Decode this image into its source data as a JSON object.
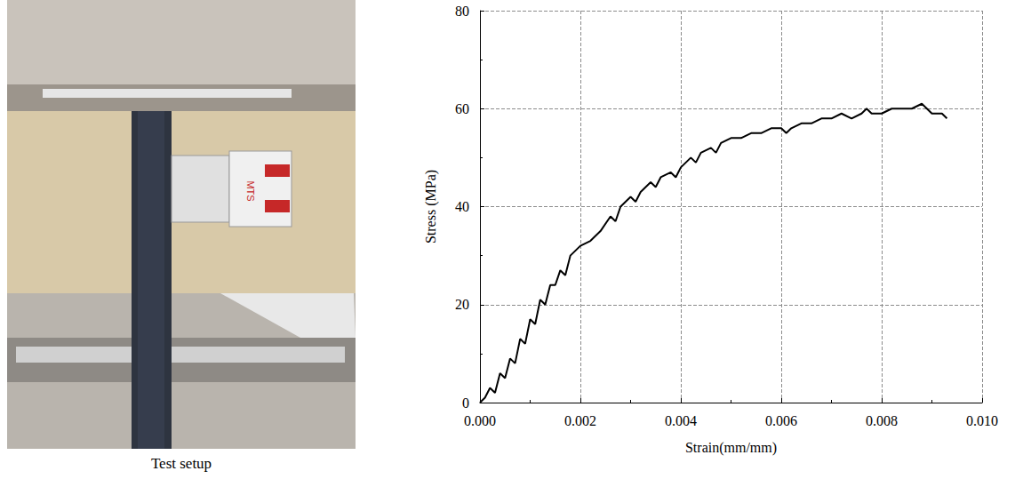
{
  "image": {
    "caption": "Test setup",
    "device_label": "MTS"
  },
  "chart_data": {
    "type": "line",
    "x_label": "Strain(mm/mm)",
    "y_label": "Stress (MPa)",
    "x": [
      0,
      0.0001,
      0.0002,
      0.0003,
      0.0004,
      0.0005,
      0.0006,
      0.0007,
      0.0008,
      0.0009,
      0.001,
      0.0011,
      0.0012,
      0.0013,
      0.0014,
      0.0015,
      0.0016,
      0.0017,
      0.0018,
      0.0019,
      0.002,
      0.0022,
      0.0024,
      0.0026,
      0.0027,
      0.0028,
      0.003,
      0.0031,
      0.0032,
      0.0034,
      0.0035,
      0.0036,
      0.0038,
      0.0039,
      0.004,
      0.0042,
      0.0043,
      0.0044,
      0.0046,
      0.0047,
      0.0048,
      0.005,
      0.0052,
      0.0054,
      0.0056,
      0.0058,
      0.006,
      0.0061,
      0.0062,
      0.0064,
      0.0066,
      0.0068,
      0.007,
      0.0072,
      0.0074,
      0.0076,
      0.0077,
      0.0078,
      0.008,
      0.0082,
      0.0084,
      0.0086,
      0.0088,
      0.0089,
      0.009,
      0.0092,
      0.0093
    ],
    "values": [
      0,
      1,
      3,
      2,
      6,
      5,
      9,
      8,
      13,
      12,
      17,
      16,
      21,
      20,
      24,
      24,
      27,
      26,
      30,
      31,
      32,
      33,
      35,
      38,
      37,
      40,
      42,
      41,
      43,
      45,
      44,
      46,
      47,
      46,
      48,
      50,
      49,
      51,
      52,
      51,
      53,
      54,
      54,
      55,
      55,
      56,
      56,
      55,
      56,
      57,
      57,
      58,
      58,
      59,
      58,
      59,
      60,
      59,
      59,
      60,
      60,
      60,
      61,
      60,
      59,
      59,
      58
    ],
    "color": "#000000",
    "xlim": [
      0,
      0.01
    ],
    "xticks": [
      {
        "value": 0,
        "label": "0.000"
      },
      {
        "value": 0.002,
        "label": "0.002"
      },
      {
        "value": 0.004,
        "label": "0.004"
      },
      {
        "value": 0.006,
        "label": "0.006"
      },
      {
        "value": 0.008,
        "label": "0.008"
      },
      {
        "value": 0.01,
        "label": "0.010"
      }
    ],
    "ylim": [
      0,
      80
    ],
    "yticks": [
      0,
      20,
      40,
      60,
      80
    ],
    "grid": true
  }
}
